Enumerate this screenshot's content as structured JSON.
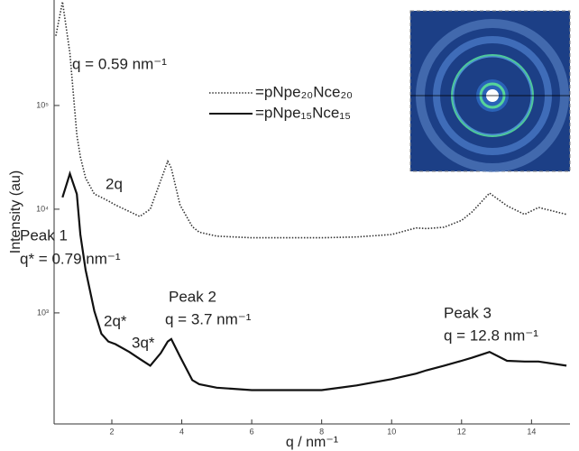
{
  "chart_data": {
    "type": "line",
    "log_y": true,
    "xlabel": "q / nm⁻¹",
    "ylabel": "Intensity (au)",
    "xlim": [
      0.35,
      15.1
    ],
    "xticks": [
      2,
      4,
      6,
      8,
      10,
      12,
      14
    ],
    "ylim": [
      85,
      1040000
    ],
    "yticks": [
      {
        "value": 1000,
        "label": "10³"
      },
      {
        "value": 10000,
        "label": "10⁴"
      },
      {
        "value": 100000,
        "label": "10⁵"
      }
    ],
    "x": [
      0.4,
      0.59,
      0.8,
      1.0,
      1.1,
      1.25,
      1.5,
      1.7,
      1.9,
      2.1,
      2.5,
      2.8,
      3.1,
      3.4,
      3.6,
      3.7,
      3.95,
      4.3,
      4.5,
      5,
      6,
      8,
      9,
      10,
      10.7,
      11,
      11.5,
      12,
      12.3,
      12.8,
      13.3,
      13.8,
      14.2,
      15
    ],
    "series": [
      {
        "name": "=pNpe₂₀Nce₂₀",
        "color": "#333333",
        "line_style": "dotted",
        "values": [
          470000,
          1000000,
          320000,
          52000,
          32000,
          20000,
          14000,
          13000,
          12000,
          11000,
          9500,
          8500,
          10000,
          19000,
          29000,
          25000,
          11000,
          6800,
          6000,
          5500,
          5300,
          5300,
          5400,
          5700,
          6600,
          6500,
          6700,
          7800,
          9400,
          14300,
          10800,
          8900,
          10400,
          8900
        ]
      },
      {
        "name": "=pNpe₁₅Nce₁₅",
        "color": "#111111",
        "line_style": "solid",
        "values": [
          null,
          13000,
          22000,
          14000,
          5700,
          2600,
          1040,
          630,
          530,
          500,
          420,
          360,
          310,
          410,
          530,
          560,
          380,
          225,
          205,
          190,
          180,
          180,
          200,
          230,
          260,
          280,
          310,
          345,
          370,
          420,
          345,
          340,
          340,
          310
        ]
      }
    ],
    "annotations": [
      "q = 0.59 nm⁻¹",
      "2q",
      "Peak 1",
      "q* = 0.79 nm⁻¹",
      "2q*",
      "3q*",
      "Peak 2",
      "q = 3.7 nm⁻¹",
      "Peak 3",
      "q = 12.8 nm⁻¹"
    ]
  }
}
